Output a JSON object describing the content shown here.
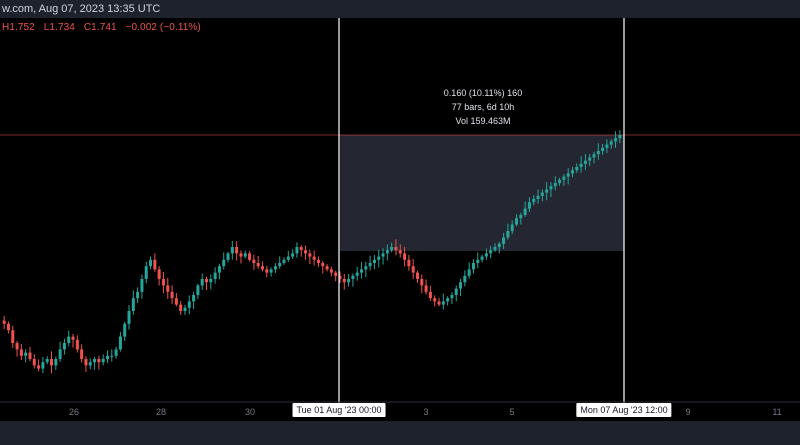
{
  "header": {
    "title": "w.com, Aug 07, 2023 13:35 UTC"
  },
  "ohlc": {
    "high": "H1.752",
    "low": "L1.734",
    "close": "C1.741",
    "change": "−0.002 (−0.11%)"
  },
  "measure": {
    "line1": "0.160 (10.11%) 160",
    "line2": "77 bars, 6d 10h",
    "line3": "Vol 159.463M"
  },
  "x_axis": {
    "ticks": [
      "26",
      "28",
      "30",
      "3",
      "5",
      "9",
      "11"
    ],
    "flag_start": "Tue 01 Aug '23   00:00",
    "flag_end": "Mon 07 Aug '23   12:00"
  },
  "colors": {
    "up": "#26a69a",
    "down": "#ef5350",
    "background": "#000000",
    "range_box": "#2a2e39",
    "price_line": "#ef5350"
  },
  "chart_data": {
    "type": "candlestick",
    "x_tick_labels": [
      "26",
      "28",
      "30",
      "3",
      "5",
      "9",
      "11"
    ],
    "ohlc_path": [
      1.66,
      1.64,
      1.6,
      1.58,
      1.56,
      1.57,
      1.55,
      1.53,
      1.52,
      1.54,
      1.55,
      1.53,
      1.55,
      1.58,
      1.6,
      1.62,
      1.61,
      1.58,
      1.55,
      1.53,
      1.54,
      1.55,
      1.54,
      1.55,
      1.56,
      1.56,
      1.58,
      1.62,
      1.66,
      1.7,
      1.74,
      1.76,
      1.8,
      1.84,
      1.86,
      1.83,
      1.8,
      1.78,
      1.76,
      1.74,
      1.72,
      1.7,
      1.71,
      1.73,
      1.75,
      1.78,
      1.8,
      1.79,
      1.8,
      1.82,
      1.84,
      1.86,
      1.88,
      1.9,
      1.88,
      1.87,
      1.88,
      1.86,
      1.85,
      1.84,
      1.83,
      1.82,
      1.83,
      1.84,
      1.85,
      1.86,
      1.87,
      1.88,
      1.9,
      1.89,
      1.88,
      1.87,
      1.86,
      1.85,
      1.84,
      1.83,
      1.82,
      1.81,
      1.8,
      1.79,
      1.8,
      1.81,
      1.82,
      1.83,
      1.84,
      1.85,
      1.86,
      1.87,
      1.88,
      1.89,
      1.9,
      1.89,
      1.88,
      1.86,
      1.84,
      1.82,
      1.8,
      1.78,
      1.76,
      1.74,
      1.73,
      1.72,
      1.73,
      1.74,
      1.75,
      1.77,
      1.79,
      1.81,
      1.83,
      1.85,
      1.86,
      1.87,
      1.88,
      1.89,
      1.9,
      1.91,
      1.93,
      1.95,
      1.97,
      1.99,
      2.0,
      2.02,
      2.04,
      2.05,
      2.06,
      2.07,
      2.08,
      2.09,
      2.1,
      2.11,
      2.12,
      2.13,
      2.14,
      2.15,
      2.16,
      2.17,
      2.18,
      2.19,
      2.2,
      2.21,
      2.22,
      2.23,
      2.24,
      2.25
    ]
  }
}
